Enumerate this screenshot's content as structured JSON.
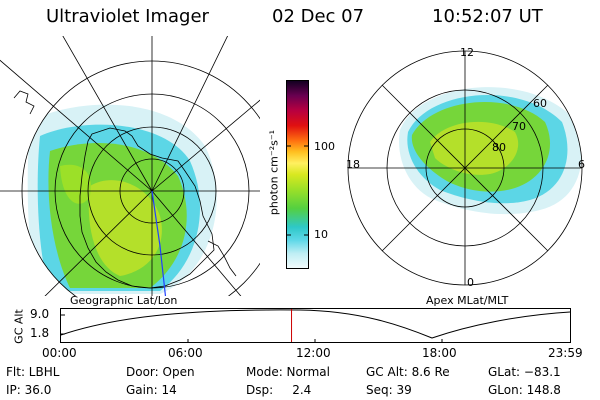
{
  "header": {
    "title": "Ultraviolet Imager",
    "date": "02 Dec 07",
    "time": "10:52:07 UT"
  },
  "left_map": {
    "caption": "Geographic Lat/Lon"
  },
  "right_map": {
    "caption": "Apex MLat/MLT",
    "mlt_labels": [
      "12",
      "18",
      "6",
      "0"
    ],
    "lat_labels": [
      "60",
      "70",
      "80"
    ]
  },
  "colorbar": {
    "unit_label": "photon cm⁻²s⁻¹",
    "ticks": [
      "100",
      "10"
    ],
    "colors": [
      "#e8f8fa",
      "#5fd8e8",
      "#2ec8c8",
      "#7ad84a",
      "#9ce028",
      "#c8e01c",
      "#fff060",
      "#ffa010",
      "#ff5010",
      "#e01010",
      "#b80040",
      "#780050",
      "#40003c",
      "#100020"
    ]
  },
  "altitude_plot": {
    "y_label": "GC Alt",
    "y_ticks": [
      "9.0",
      "1.8"
    ],
    "x_ticks": [
      "00:00",
      "06:00",
      "12:00",
      "18:00",
      "23:59"
    ],
    "current_time_marker_hours": 10.87,
    "marker_color": "#cc0000"
  },
  "info": {
    "row1": [
      "Flt: LBHL",
      "Door: Open",
      "Mode: Normal",
      "GC Alt: 8.6 Re",
      "GLat: −83.1"
    ],
    "row2": [
      "IP: 36.0",
      "Gain: 14",
      "Dsp:     2.4",
      "Seq: 39",
      "GLon: 148.8"
    ]
  },
  "aurora_colors": {
    "green": "#76d63a",
    "yellow_green": "#b4e02a",
    "cyan": "#5cd6e6",
    "pale": "#d8f2f6"
  }
}
